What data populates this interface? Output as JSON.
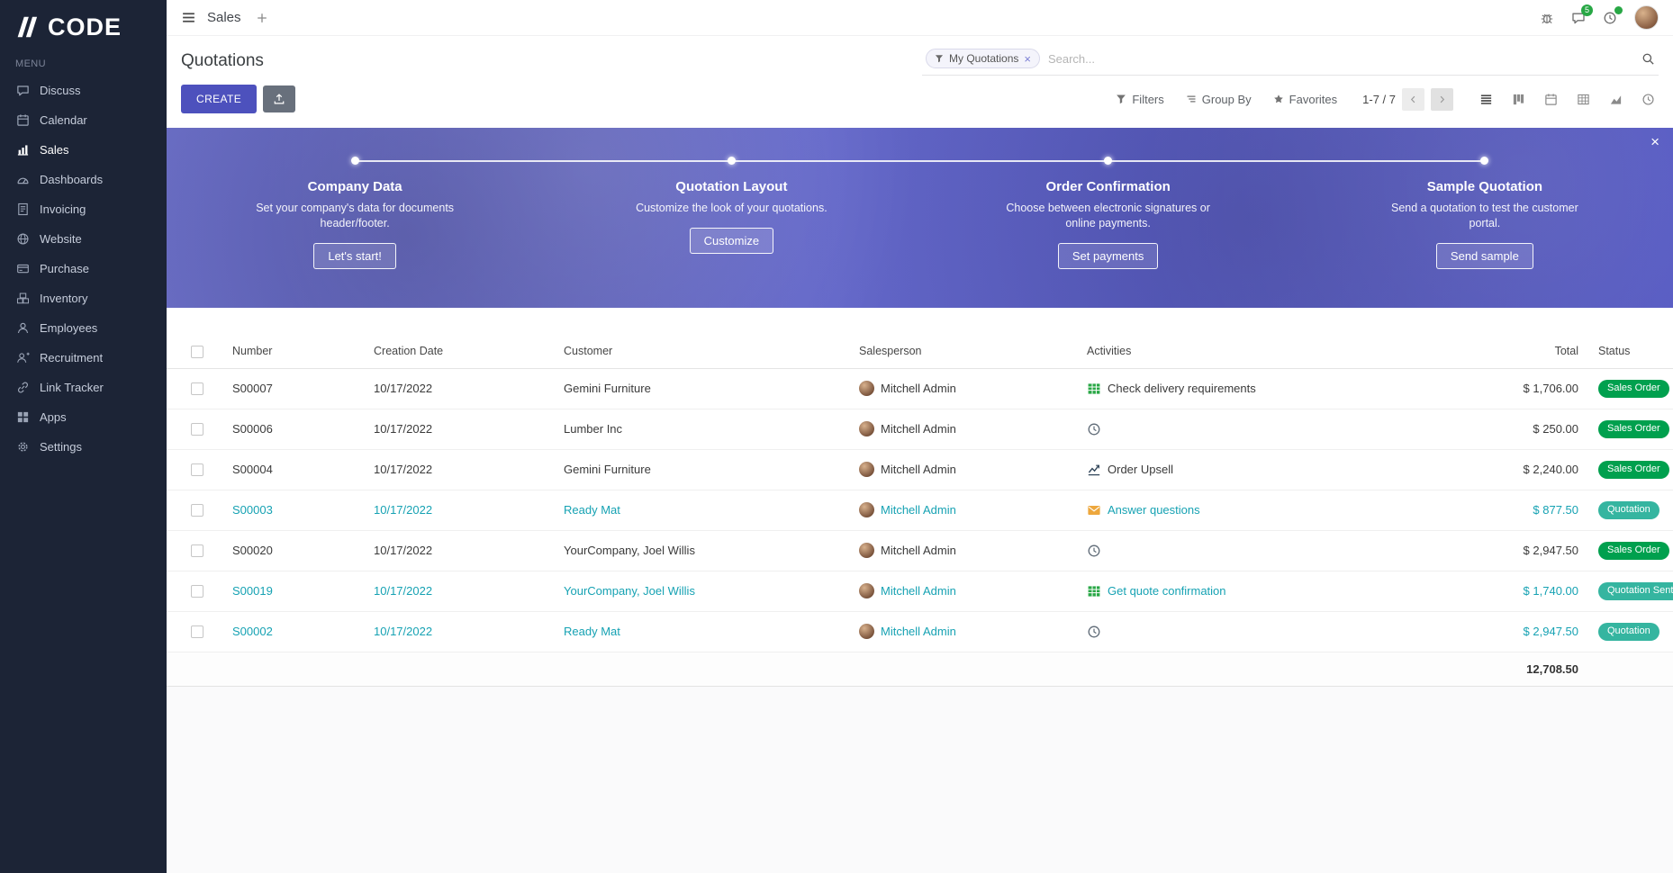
{
  "brand": {
    "name": "CODE"
  },
  "topbar": {
    "app_name": "Sales",
    "chat_badge": "5"
  },
  "sidebar": {
    "menu_label": "MENU",
    "items": [
      {
        "label": "Discuss",
        "icon": "discuss-icon",
        "active": false
      },
      {
        "label": "Calendar",
        "icon": "calendar-icon",
        "active": false
      },
      {
        "label": "Sales",
        "icon": "sales-icon",
        "active": true
      },
      {
        "label": "Dashboards",
        "icon": "dashboards-icon",
        "active": false
      },
      {
        "label": "Invoicing",
        "icon": "invoicing-icon",
        "active": false
      },
      {
        "label": "Website",
        "icon": "website-icon",
        "active": false
      },
      {
        "label": "Purchase",
        "icon": "purchase-icon",
        "active": false
      },
      {
        "label": "Inventory",
        "icon": "inventory-icon",
        "active": false
      },
      {
        "label": "Employees",
        "icon": "employees-icon",
        "active": false
      },
      {
        "label": "Recruitment",
        "icon": "recruitment-icon",
        "active": false
      },
      {
        "label": "Link Tracker",
        "icon": "link-tracker-icon",
        "active": false
      },
      {
        "label": "Apps",
        "icon": "apps-icon",
        "active": false
      },
      {
        "label": "Settings",
        "icon": "settings-icon",
        "active": false
      }
    ]
  },
  "control_panel": {
    "title": "Quotations",
    "create_button": "CREATE",
    "search_facet": "My Quotations",
    "search_placeholder": "Search...",
    "filters_label": "Filters",
    "group_by_label": "Group By",
    "favorites_label": "Favorites",
    "pager": "1-7 / 7"
  },
  "banner": {
    "close_label": "×",
    "steps": [
      {
        "title": "Company Data",
        "description": "Set your company's data for documents header/footer.",
        "button": "Let's start!"
      },
      {
        "title": "Quotation Layout",
        "description": "Customize the look of your quotations.",
        "button": "Customize"
      },
      {
        "title": "Order Confirmation",
        "description": "Choose between electronic signatures or online payments.",
        "button": "Set payments"
      },
      {
        "title": "Sample Quotation",
        "description": "Send a quotation to test the customer portal.",
        "button": "Send sample"
      }
    ]
  },
  "table": {
    "headers": [
      "Number",
      "Creation Date",
      "Customer",
      "Salesperson",
      "Activities",
      "Total",
      "Status"
    ],
    "rows": [
      {
        "number": "S00007",
        "creation_date": "10/17/2022",
        "customer": "Gemini Furniture",
        "salesperson": "Mitchell Admin",
        "activity": {
          "icon": "spreadsheet-icon",
          "label": "Check delivery requirements",
          "color": "green"
        },
        "total": "$ 1,706.00",
        "status": "Sales Order",
        "status_variant": "sales-order",
        "highlighted": false
      },
      {
        "number": "S00006",
        "creation_date": "10/17/2022",
        "customer": "Lumber Inc",
        "salesperson": "Mitchell Admin",
        "activity": {
          "icon": "clock-icon",
          "label": "",
          "color": "gray"
        },
        "total": "$ 250.00",
        "status": "Sales Order",
        "status_variant": "sales-order",
        "highlighted": false
      },
      {
        "number": "S00004",
        "creation_date": "10/17/2022",
        "customer": "Gemini Furniture",
        "salesperson": "Mitchell Admin",
        "activity": {
          "icon": "line-chart-icon",
          "label": "Order Upsell",
          "color": "dark"
        },
        "total": "$ 2,240.00",
        "status": "Sales Order",
        "status_variant": "sales-order",
        "highlighted": false
      },
      {
        "number": "S00003",
        "creation_date": "10/17/2022",
        "customer": "Ready Mat",
        "salesperson": "Mitchell Admin",
        "activity": {
          "icon": "envelope-icon",
          "label": "Answer questions",
          "color": "orange"
        },
        "total": "$ 877.50",
        "status": "Quotation",
        "status_variant": "quotation",
        "highlighted": true
      },
      {
        "number": "S00020",
        "creation_date": "10/17/2022",
        "customer": "YourCompany, Joel Willis",
        "salesperson": "Mitchell Admin",
        "activity": {
          "icon": "clock-icon",
          "label": "",
          "color": "gray"
        },
        "total": "$ 2,947.50",
        "status": "Sales Order",
        "status_variant": "sales-order",
        "highlighted": false
      },
      {
        "number": "S00019",
        "creation_date": "10/17/2022",
        "customer": "YourCompany, Joel Willis",
        "salesperson": "Mitchell Admin",
        "activity": {
          "icon": "spreadsheet-icon",
          "label": "Get quote confirmation",
          "color": "green"
        },
        "total": "$ 1,740.00",
        "status": "Quotation Sent",
        "status_variant": "quotation",
        "highlighted": true
      },
      {
        "number": "S00002",
        "creation_date": "10/17/2022",
        "customer": "Ready Mat",
        "salesperson": "Mitchell Admin",
        "activity": {
          "icon": "clock-icon",
          "label": "",
          "color": "gray"
        },
        "total": "$ 2,947.50",
        "status": "Quotation",
        "status_variant": "quotation",
        "highlighted": true
      }
    ],
    "footer_total": "12,708.50"
  },
  "colors": {
    "primary": "#4d51bd",
    "sidebar_bg": "#1c2436",
    "banner_start": "#7276d1",
    "banner_end": "#5357c3",
    "sales_order_badge": "#00a04e",
    "quotation_badge": "#35b5a0",
    "highlight_text": "#16a2b3",
    "notification_badge": "#28a745",
    "activity_green": "#28a745",
    "activity_orange": "#eda73d"
  }
}
